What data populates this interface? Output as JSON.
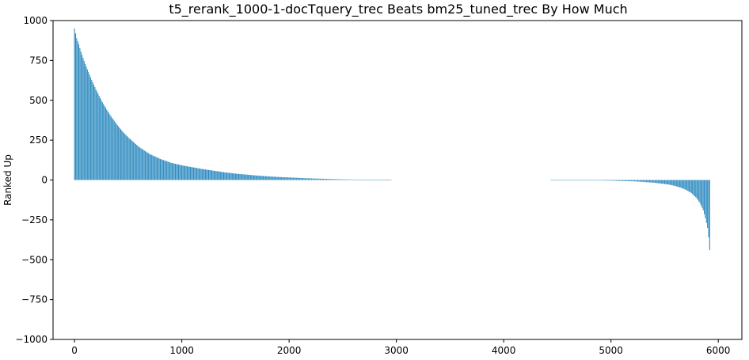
{
  "chart_data": {
    "type": "bar",
    "title": "t5_rerank_1000-1-docTquery_trec Beats bm25_tuned_trec By How Much",
    "xlabel": "",
    "ylabel": "Ranked Up",
    "xlim": [
      -200,
      6220
    ],
    "ylim": [
      -1000,
      1000
    ],
    "xticks": [
      0,
      1000,
      2000,
      3000,
      4000,
      5000,
      6000
    ],
    "yticks": [
      -1000,
      -750,
      -500,
      -250,
      0,
      250,
      500,
      750,
      1000
    ],
    "grid": false,
    "bar_color": "#2e8bc0",
    "n_bars": 5920,
    "x": [
      0,
      10,
      20,
      40,
      60,
      80,
      100,
      150,
      200,
      250,
      300,
      350,
      400,
      450,
      500,
      600,
      700,
      800,
      900,
      1000,
      1100,
      1200,
      1300,
      1400,
      1500,
      1600,
      1700,
      1800,
      1900,
      2000,
      2100,
      2200,
      2300,
      2400,
      2500,
      2600,
      2700,
      2800,
      2900,
      3000,
      4380,
      4500,
      4700,
      4900,
      5000,
      5100,
      5200,
      5300,
      5400,
      5500,
      5550,
      5600,
      5650,
      5700,
      5750,
      5800,
      5830,
      5860,
      5880,
      5900,
      5910,
      5920
    ],
    "values": [
      950,
      920,
      890,
      850,
      805,
      765,
      728,
      643,
      568,
      500,
      442,
      390,
      344,
      303,
      268,
      208,
      163,
      132,
      108,
      92,
      80,
      68,
      58,
      48,
      40,
      34,
      28,
      23,
      19,
      16,
      13,
      10,
      8,
      6,
      4,
      3,
      2,
      1,
      1,
      0,
      0,
      -1,
      -2,
      -3,
      -4,
      -6,
      -8,
      -12,
      -17,
      -25,
      -30,
      -38,
      -48,
      -62,
      -82,
      -115,
      -145,
      -190,
      -240,
      -300,
      -360,
      -440
    ]
  }
}
